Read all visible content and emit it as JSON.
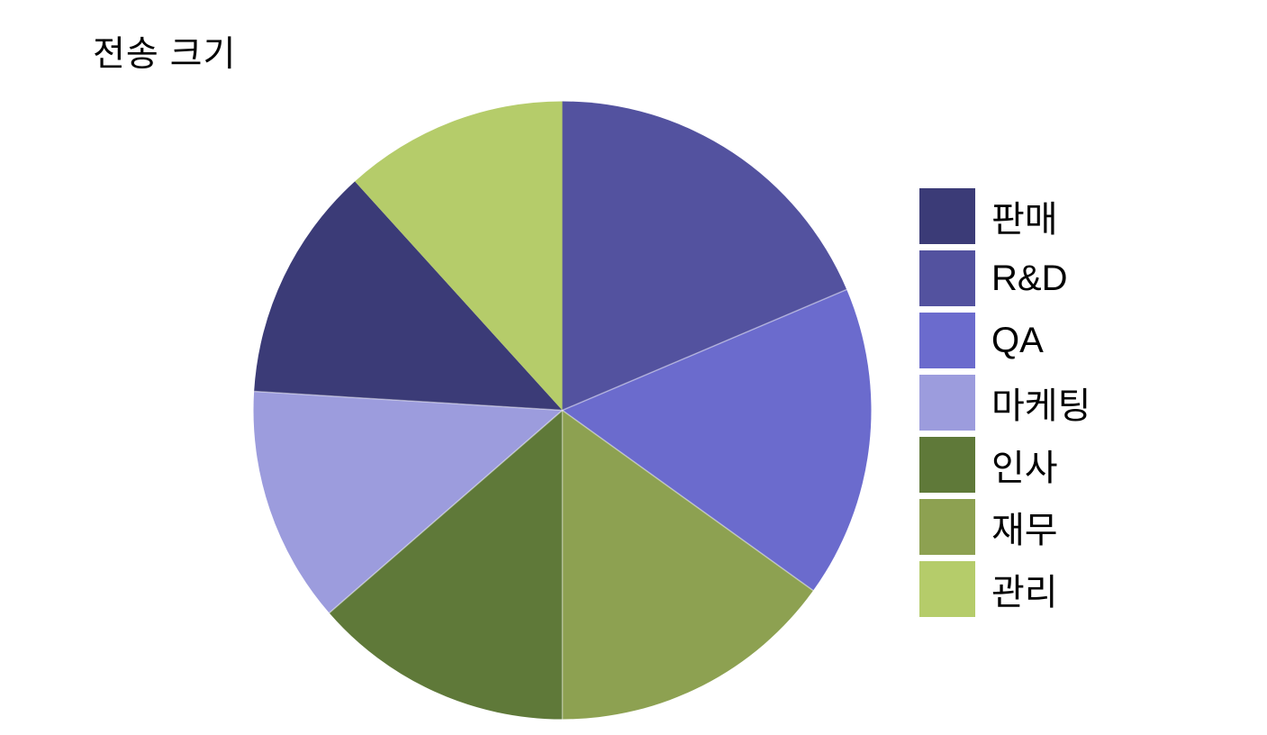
{
  "title": "전송 크기",
  "chart_data": {
    "type": "pie",
    "title": "전송 크기",
    "categories": [
      "판매",
      "R&D",
      "QA",
      "마케팅",
      "인사",
      "재무",
      "관리"
    ],
    "values": [
      12.3,
      18.6,
      16.3,
      12.4,
      13.6,
      15.1,
      11.7
    ],
    "unit": "percent",
    "legend_position": "right",
    "data_labels": "none",
    "slices_clockwise_from_top": [
      {
        "label": "R&D",
        "start": 0,
        "end": 67,
        "percent": 18.6,
        "color": "#53529F"
      },
      {
        "label": "QA",
        "start": 67,
        "end": 125.7,
        "percent": 16.3,
        "color": "#6B6BCD"
      },
      {
        "label": "재무",
        "start": 125.7,
        "end": 180,
        "percent": 15.1,
        "color": "#8DA151"
      },
      {
        "label": "인사",
        "start": 180,
        "end": 229,
        "percent": 13.6,
        "color": "#5F7939"
      },
      {
        "label": "마케팅",
        "start": 229,
        "end": 273.5,
        "percent": 12.4,
        "color": "#9C9CDD"
      },
      {
        "label": "판매",
        "start": 273.5,
        "end": 317.8,
        "percent": 12.3,
        "color": "#3B3B77"
      },
      {
        "label": "관리",
        "start": 317.8,
        "end": 360,
        "percent": 11.7,
        "color": "#B5CC6A"
      }
    ],
    "separator_angles": [
      67,
      125.7,
      180,
      229,
      273.5
    ],
    "separator_color": "rgba(255,255,255,0.45)"
  },
  "legend": {
    "items": [
      {
        "label": "판매",
        "color": "#3B3B77"
      },
      {
        "label": "R&D",
        "color": "#53529F"
      },
      {
        "label": "QA",
        "color": "#6B6BCD"
      },
      {
        "label": "마케팅",
        "color": "#9C9CDD"
      },
      {
        "label": "인사",
        "color": "#5F7939"
      },
      {
        "label": "재무",
        "color": "#8DA151"
      },
      {
        "label": "관리",
        "color": "#B5CC6A"
      }
    ]
  }
}
